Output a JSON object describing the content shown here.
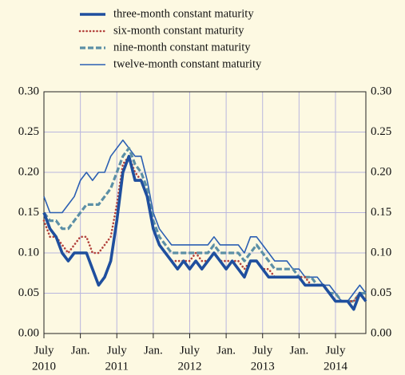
{
  "chart_data": {
    "type": "line",
    "x": [
      "2010-07",
      "2010-08",
      "2010-09",
      "2010-10",
      "2010-11",
      "2010-12",
      "2011-01",
      "2011-02",
      "2011-03",
      "2011-04",
      "2011-05",
      "2011-06",
      "2011-07",
      "2011-08",
      "2011-09",
      "2011-10",
      "2011-11",
      "2011-12",
      "2012-01",
      "2012-02",
      "2012-03",
      "2012-04",
      "2012-05",
      "2012-06",
      "2012-07",
      "2012-08",
      "2012-09",
      "2012-10",
      "2012-11",
      "2012-12",
      "2013-01",
      "2013-02",
      "2013-03",
      "2013-04",
      "2013-05",
      "2013-06",
      "2013-07",
      "2013-08",
      "2013-09",
      "2013-10",
      "2013-11",
      "2013-12",
      "2014-01",
      "2014-02",
      "2014-03",
      "2014-04",
      "2014-05",
      "2014-06",
      "2014-07",
      "2014-08",
      "2014-09",
      "2014-10",
      "2014-11",
      "2014-12"
    ],
    "series": [
      {
        "name": "three-month constant maturity",
        "color": "#1f4f9e",
        "style": "solid-thick",
        "values": [
          0.15,
          0.13,
          0.12,
          0.1,
          0.09,
          0.1,
          0.1,
          0.1,
          0.08,
          0.06,
          0.07,
          0.09,
          0.14,
          0.2,
          0.22,
          0.19,
          0.19,
          0.17,
          0.13,
          0.11,
          0.1,
          0.09,
          0.08,
          0.09,
          0.08,
          0.09,
          0.08,
          0.09,
          0.1,
          0.09,
          0.08,
          0.09,
          0.08,
          0.07,
          0.09,
          0.09,
          0.08,
          0.07,
          0.07,
          0.07,
          0.07,
          0.07,
          0.07,
          0.06,
          0.06,
          0.06,
          0.06,
          0.05,
          0.04,
          0.04,
          0.04,
          0.03,
          0.05,
          0.04
        ]
      },
      {
        "name": "six-month constant maturity",
        "color": "#b3423c",
        "style": "dotted",
        "values": [
          0.14,
          0.12,
          0.12,
          0.11,
          0.1,
          0.11,
          0.12,
          0.12,
          0.1,
          0.1,
          0.11,
          0.12,
          0.16,
          0.21,
          0.22,
          0.2,
          0.19,
          0.17,
          0.13,
          0.11,
          0.1,
          0.09,
          0.09,
          0.09,
          0.09,
          0.1,
          0.09,
          0.09,
          0.1,
          0.09,
          0.09,
          0.09,
          0.09,
          0.08,
          0.09,
          0.09,
          0.08,
          0.08,
          0.07,
          0.07,
          0.07,
          0.07,
          0.07,
          0.07,
          0.06,
          0.06,
          0.06,
          0.05,
          0.04,
          0.04,
          0.04,
          0.04,
          0.05,
          0.04
        ]
      },
      {
        "name": "nine-month constant maturity",
        "color": "#5b8fa6",
        "style": "dashed",
        "values": [
          0.15,
          0.14,
          0.14,
          0.13,
          0.13,
          0.14,
          0.15,
          0.16,
          0.16,
          0.16,
          0.17,
          0.18,
          0.2,
          0.22,
          0.23,
          0.21,
          0.2,
          0.18,
          0.14,
          0.12,
          0.11,
          0.1,
          0.1,
          0.1,
          0.1,
          0.1,
          0.1,
          0.1,
          0.11,
          0.1,
          0.1,
          0.1,
          0.1,
          0.09,
          0.1,
          0.11,
          0.1,
          0.09,
          0.08,
          0.08,
          0.08,
          0.08,
          0.07,
          0.07,
          0.07,
          0.06,
          0.06,
          0.05,
          0.05,
          0.04,
          0.04,
          0.04,
          0.05,
          0.05
        ]
      },
      {
        "name": "twelve-month constant maturity",
        "color": "#2b5fb3",
        "style": "solid-thin",
        "values": [
          0.17,
          0.15,
          0.15,
          0.15,
          0.16,
          0.17,
          0.19,
          0.2,
          0.19,
          0.2,
          0.2,
          0.22,
          0.23,
          0.24,
          0.23,
          0.22,
          0.22,
          0.19,
          0.15,
          0.13,
          0.12,
          0.11,
          0.11,
          0.11,
          0.11,
          0.11,
          0.11,
          0.11,
          0.12,
          0.11,
          0.11,
          0.11,
          0.11,
          0.1,
          0.12,
          0.12,
          0.11,
          0.1,
          0.09,
          0.09,
          0.09,
          0.08,
          0.08,
          0.07,
          0.07,
          0.07,
          0.06,
          0.06,
          0.05,
          0.04,
          0.04,
          0.05,
          0.06,
          0.05
        ]
      }
    ],
    "xlim": [
      "2010-07",
      "2014-12"
    ],
    "xticks": [
      {
        "value": "2010-07",
        "label": "July",
        "year": "2010"
      },
      {
        "value": "2011-01",
        "label": "Jan."
      },
      {
        "value": "2011-07",
        "label": "July",
        "year": "2011"
      },
      {
        "value": "2012-01",
        "label": "Jan."
      },
      {
        "value": "2012-07",
        "label": "July",
        "year": "2012"
      },
      {
        "value": "2013-01",
        "label": "Jan."
      },
      {
        "value": "2013-07",
        "label": "July",
        "year": "2013"
      },
      {
        "value": "2014-01",
        "label": "Jan."
      },
      {
        "value": "2014-07",
        "label": "July",
        "year": "2014"
      }
    ],
    "ylim": [
      0,
      0.3
    ],
    "yticks": [
      {
        "value": 0,
        "label": "0.00"
      },
      0.05,
      {
        "value": 0.1,
        "label": "0.10"
      },
      0.15,
      {
        "value": 0.2,
        "label": "0.20"
      },
      0.25,
      {
        "value": 0.3,
        "label": "0.30"
      }
    ],
    "grid": true
  }
}
